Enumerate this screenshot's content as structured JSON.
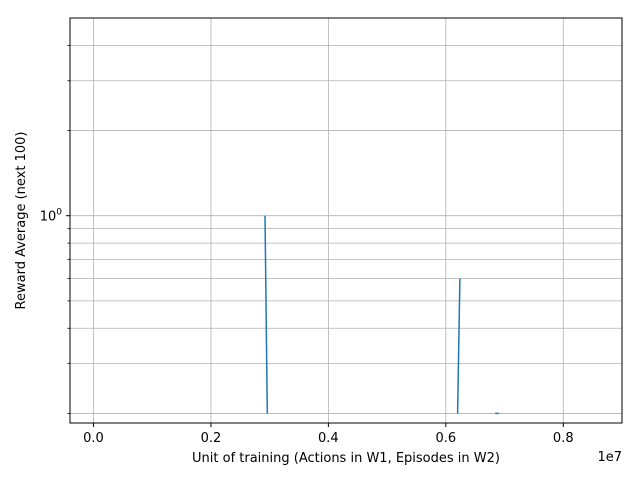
{
  "chart_data": {
    "type": "line",
    "title": "",
    "xlabel": "Unit of training (Actions in W1, Episodes in W2)",
    "ylabel": "Reward Average (next 100)",
    "x_offset_text": "1e7",
    "xlim": [
      -400000,
      9000000
    ],
    "ylim": [
      0.185,
      5.0
    ],
    "yscale": "log",
    "grid": true,
    "x_ticks": [
      0,
      2000000,
      4000000,
      6000000,
      8000000
    ],
    "x_tick_labels": [
      "0.0",
      "0.2",
      "0.4",
      "0.6",
      "0.8"
    ],
    "y_major_ticks": [
      1
    ],
    "y_major_tick_labels": [
      "10^0"
    ],
    "y_minor_ticks": [
      0.2,
      0.3,
      0.4,
      0.5,
      0.6,
      0.7,
      0.8,
      0.9,
      2,
      3,
      4
    ],
    "series": [
      {
        "color": "#1f77b4",
        "x": [
          2920000,
          2960000,
          6200000,
          6240000,
          6840000,
          6900000
        ],
        "y": [
          1.0,
          0.2,
          0.2,
          0.6,
          0.2,
          0.2
        ],
        "segments": [
          [
            0,
            1
          ],
          [
            2,
            3
          ],
          [
            4,
            5
          ]
        ]
      }
    ]
  }
}
